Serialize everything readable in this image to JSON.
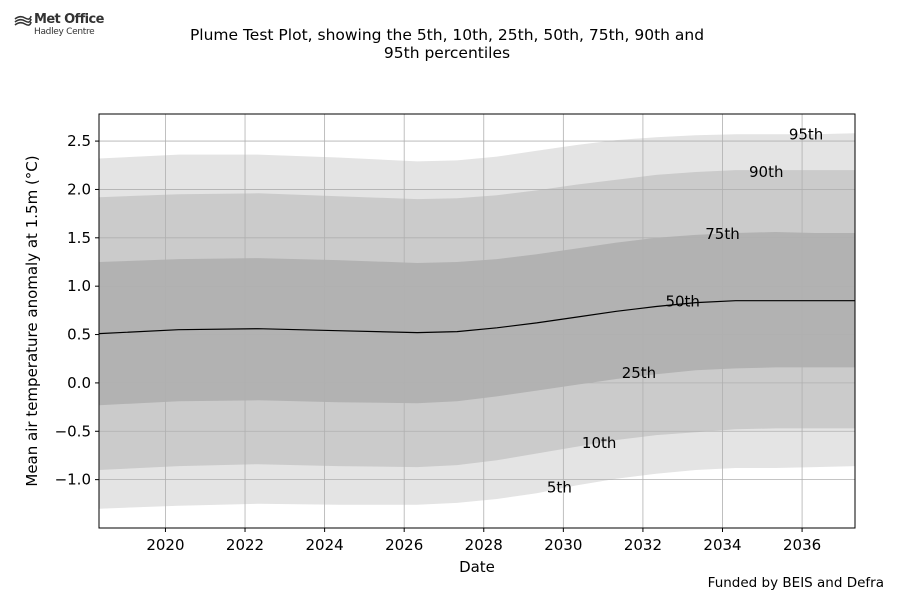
{
  "logo": {
    "name": "Met Office",
    "subname": "Hadley Centre"
  },
  "title_lines": [
    "Plume Test Plot, showing the 5th, 10th, 25th, 50th, 75th, 90th and",
    "95th percentiles"
  ],
  "footer": "Funded by BEIS and Defra",
  "chart_data": {
    "type": "area",
    "title": "Plume Test Plot, showing the 5th, 10th, 25th, 50th, 75th, 90th and 95th percentiles",
    "xlabel": "Date",
    "ylabel": "Mean air temperature anomaly at 1.5m (°C)",
    "xlim": [
      2018.33,
      2037.33
    ],
    "ylim": [
      -1.5,
      2.78
    ],
    "x_ticks": [
      2020,
      2022,
      2024,
      2026,
      2028,
      2030,
      2032,
      2034,
      2036
    ],
    "y_ticks": [
      -1.0,
      -0.5,
      0.0,
      0.5,
      1.0,
      1.5,
      2.0,
      2.5
    ],
    "grid": true,
    "x": [
      2018.33,
      2020.33,
      2022.33,
      2024.33,
      2026.33,
      2027.33,
      2028.33,
      2029.33,
      2030.33,
      2031.33,
      2032.33,
      2033.33,
      2034.33,
      2035.33,
      2036.33,
      2037.33
    ],
    "series": [
      {
        "name": "5th",
        "values": [
          -1.3,
          -1.27,
          -1.25,
          -1.26,
          -1.26,
          -1.24,
          -1.2,
          -1.14,
          -1.06,
          -0.99,
          -0.94,
          -0.9,
          -0.88,
          -0.88,
          -0.87,
          -0.86
        ]
      },
      {
        "name": "10th",
        "values": [
          -0.9,
          -0.86,
          -0.84,
          -0.86,
          -0.87,
          -0.85,
          -0.8,
          -0.73,
          -0.66,
          -0.59,
          -0.54,
          -0.51,
          -0.48,
          -0.47,
          -0.47,
          -0.47
        ]
      },
      {
        "name": "25th",
        "values": [
          -0.23,
          -0.19,
          -0.18,
          -0.2,
          -0.21,
          -0.19,
          -0.14,
          -0.08,
          -0.02,
          0.04,
          0.09,
          0.13,
          0.15,
          0.16,
          0.16,
          0.16
        ]
      },
      {
        "name": "50th",
        "values": [
          0.51,
          0.55,
          0.56,
          0.54,
          0.52,
          0.53,
          0.57,
          0.62,
          0.68,
          0.74,
          0.79,
          0.83,
          0.85,
          0.85,
          0.85,
          0.85
        ]
      },
      {
        "name": "75th",
        "values": [
          1.25,
          1.28,
          1.29,
          1.27,
          1.24,
          1.25,
          1.28,
          1.33,
          1.39,
          1.45,
          1.5,
          1.53,
          1.55,
          1.56,
          1.55,
          1.55
        ]
      },
      {
        "name": "90th",
        "values": [
          1.92,
          1.95,
          1.96,
          1.93,
          1.9,
          1.91,
          1.94,
          1.99,
          2.05,
          2.1,
          2.15,
          2.18,
          2.2,
          2.2,
          2.2,
          2.2
        ]
      },
      {
        "name": "95th",
        "values": [
          2.32,
          2.36,
          2.36,
          2.33,
          2.29,
          2.3,
          2.34,
          2.4,
          2.46,
          2.51,
          2.54,
          2.56,
          2.57,
          2.57,
          2.57,
          2.58
        ]
      }
    ],
    "percentile_labels": [
      {
        "text": "5th",
        "x": 2029.9,
        "y": -1.08
      },
      {
        "text": "10th",
        "x": 2030.9,
        "y": -0.62
      },
      {
        "text": "25th",
        "x": 2031.9,
        "y": 0.1
      },
      {
        "text": "50th",
        "x": 2033.0,
        "y": 0.84
      },
      {
        "text": "75th",
        "x": 2034.0,
        "y": 1.54
      },
      {
        "text": "90th",
        "x": 2035.1,
        "y": 2.18
      },
      {
        "text": "95th",
        "x": 2036.1,
        "y": 2.57
      }
    ],
    "band_colors": {
      "outer": "#e4e4e4",
      "middle": "#cbcbcb",
      "inner": "#b2b2b2",
      "median": "#000000",
      "grid": "#b0b0b0"
    }
  }
}
